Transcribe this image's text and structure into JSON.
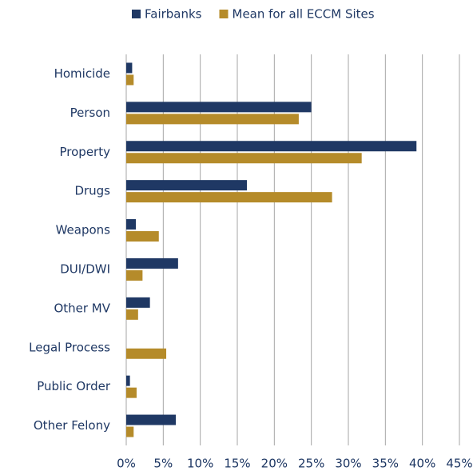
{
  "chart_data": {
    "type": "bar",
    "orientation": "horizontal",
    "categories": [
      "Homicide",
      "Person",
      "Property",
      "Drugs",
      "Weapons",
      "DUI/DWI",
      "Other MV",
      "Legal Process",
      "Public Order",
      "Other Felony"
    ],
    "series": [
      {
        "name": "Fairbanks",
        "color": "#1f3864",
        "values": [
          0.8,
          25.0,
          39.2,
          16.3,
          1.3,
          7.0,
          3.2,
          0,
          0.5,
          6.7
        ]
      },
      {
        "name": "Mean for all ECCM Sites",
        "color": "#b58b2a",
        "values": [
          1.0,
          23.3,
          31.8,
          27.8,
          4.4,
          2.2,
          1.6,
          5.4,
          1.4,
          1.0
        ]
      }
    ],
    "xlim": [
      0,
      45
    ],
    "xticks": [
      {
        "value": 0,
        "label": "0%"
      },
      {
        "value": 5,
        "label": "5%"
      },
      {
        "value": 10,
        "label": "10%"
      },
      {
        "value": 15,
        "label": "15%"
      },
      {
        "value": 20,
        "label": "20%"
      },
      {
        "value": 25,
        "label": "25%"
      },
      {
        "value": 30,
        "label": "30%"
      },
      {
        "value": 35,
        "label": "35%"
      },
      {
        "value": 40,
        "label": "40%"
      },
      {
        "value": 45,
        "label": "45%"
      }
    ],
    "grid": true,
    "legend": "top"
  }
}
